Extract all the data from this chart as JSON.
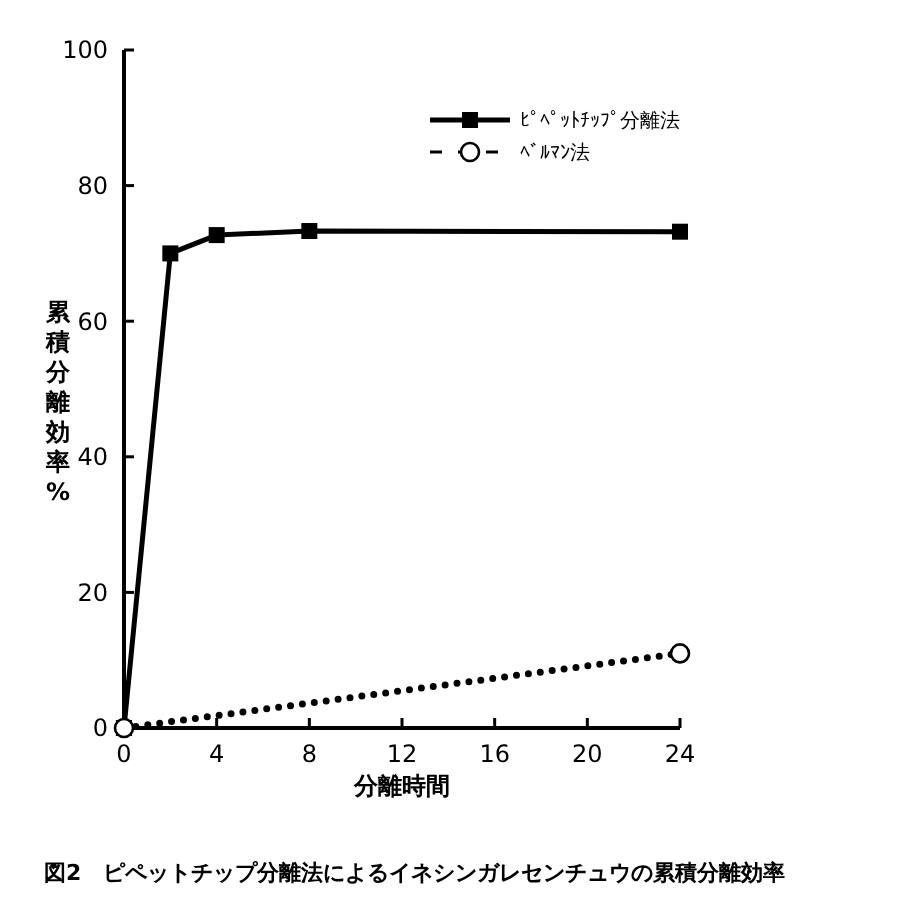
{
  "chart_data": {
    "type": "line",
    "xlabel": "分離時間",
    "ylabel": "累積分離効率%",
    "annotations": [
      "図2　ピペットチップ分離法によるイネシンガレセンチュウの累積分離効率"
    ],
    "xlim": [
      0,
      24
    ],
    "xticks": [
      0,
      4,
      8,
      12,
      16,
      20,
      24
    ],
    "ylim": [
      0,
      100
    ],
    "yticks": [
      0,
      20,
      40,
      60,
      80,
      100
    ],
    "grid": false,
    "legend": "top right",
    "series": [
      {
        "name": "ﾋﾟﾍﾟｯﾄﾁｯﾌﾟ分離法",
        "color": "#000000",
        "x": [
          0,
          2,
          4,
          8,
          24
        ],
        "values": [
          0,
          70,
          72.7,
          73.3,
          73.2
        ],
        "marker": "square",
        "line_style": "solid"
      },
      {
        "name": "ﾍﾞﾙﾏﾝ法",
        "color": "#000000",
        "x": [
          0,
          24
        ],
        "values": [
          0,
          11
        ],
        "marker": "circle",
        "line_style": "dotted"
      }
    ]
  }
}
